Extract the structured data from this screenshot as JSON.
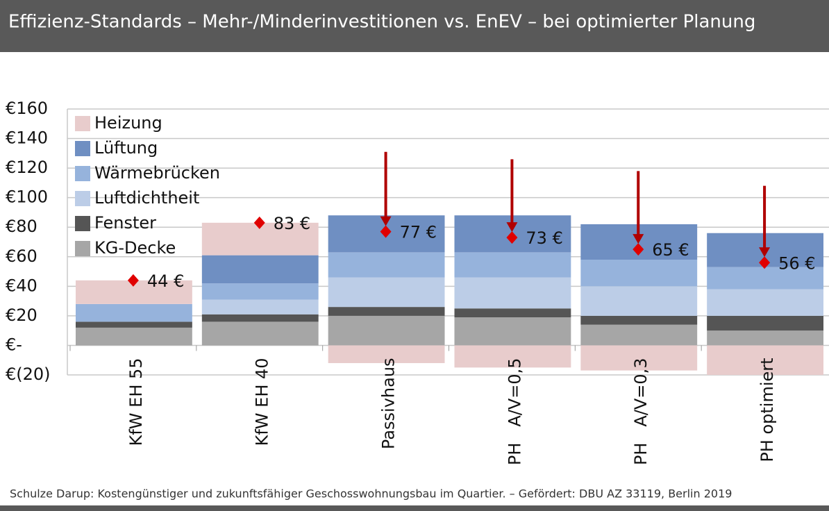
{
  "chart_data": {
    "type": "stacked-bar",
    "title": "Effizienz-Standards – Mehr-/Minderinvestitionen vs. EnEV – bei optimierter Planung",
    "footnote": "Schulze Darup: Kostengünstiger und zukunftsfähiger Geschosswohnungsbau im Quartier. – Gefördert: DBU AZ 33119, Berlin 2019",
    "categories": [
      "KfW EH 55",
      "KfW EH 40",
      "Passivhaus",
      "PH   A/V=0,5",
      "PH   A/V=0,3",
      "PH optimiert"
    ],
    "series": [
      {
        "name": "KG-Decke",
        "color": "#a6a6a6",
        "values": [
          12,
          16,
          20,
          19,
          14,
          10
        ]
      },
      {
        "name": "Fenster",
        "color": "#555555",
        "values": [
          4,
          5,
          6,
          6,
          6,
          10
        ]
      },
      {
        "name": "Luftdichtheit",
        "color": "#bccde7",
        "values": [
          0,
          10,
          20,
          21,
          20,
          18
        ]
      },
      {
        "name": "Wärmebrücken",
        "color": "#96b3dc",
        "values": [
          12,
          11,
          17,
          17,
          18,
          15
        ]
      },
      {
        "name": "Lüftung",
        "color": "#6f8fc2",
        "values": [
          0,
          19,
          25,
          25,
          24,
          23
        ]
      },
      {
        "name": "Heizung",
        "color": "#e8cccc",
        "values": [
          16,
          22,
          -12,
          -15,
          -17,
          -20
        ]
      }
    ],
    "net": {
      "color": "#e00000",
      "values": [
        44,
        83,
        77,
        73,
        65,
        56
      ],
      "value_labels": [
        "44 €",
        "83 €",
        "77 €",
        "73 €",
        "65 €",
        "56 €"
      ]
    },
    "arrow_start": {
      "color": "#b00000",
      "values": [
        null,
        null,
        131,
        126,
        118,
        108
      ]
    },
    "ylim": [
      -20,
      160
    ],
    "yticks": [
      {
        "value": -20,
        "label": "€(20)"
      },
      {
        "value": 0,
        "label": "€-"
      },
      {
        "value": 20,
        "label": "€20"
      },
      {
        "value": 40,
        "label": "€40"
      },
      {
        "value": 60,
        "label": "€60"
      },
      {
        "value": 80,
        "label": "€80"
      },
      {
        "value": 100,
        "label": "€100"
      },
      {
        "value": 120,
        "label": "€120"
      },
      {
        "value": 140,
        "label": "€140"
      },
      {
        "value": 160,
        "label": "€160"
      }
    ],
    "grid": true,
    "legend": "top-left"
  }
}
